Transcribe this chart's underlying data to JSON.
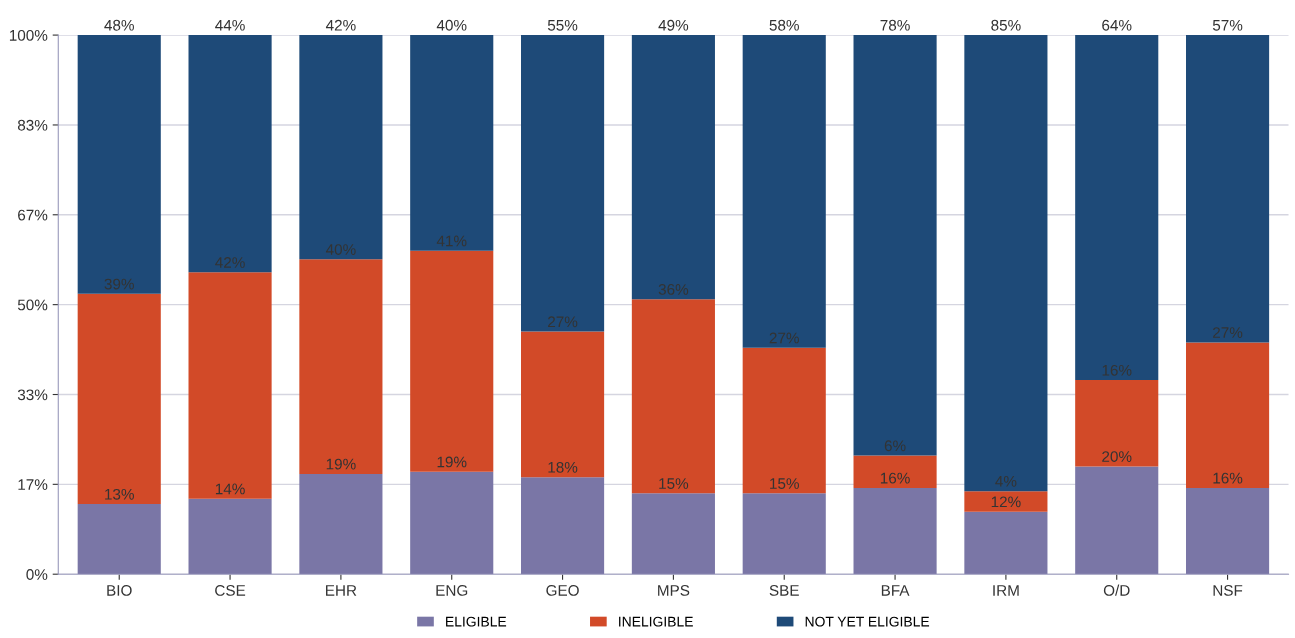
{
  "chart_data": {
    "type": "bar",
    "stacked": true,
    "categories": [
      "BIO",
      "CSE",
      "EHR",
      "ENG",
      "GEO",
      "MPS",
      "SBE",
      "BFA",
      "IRM",
      "O/D",
      "NSF"
    ],
    "series": [
      {
        "name": "ELIGIBLE",
        "color": "#7a76a6",
        "values": [
          13,
          14,
          18.6,
          19,
          18,
          15,
          15,
          16,
          11.6,
          20,
          16
        ],
        "value_labels": [
          "13%",
          "14%",
          "19%",
          "19%",
          "18%",
          "15%",
          "15%",
          "16%",
          "12%",
          "20%",
          "16%"
        ]
      },
      {
        "name": "INELIGIBLE",
        "color": "#d24a28",
        "values": [
          39,
          42,
          39.8,
          41,
          27,
          36,
          27,
          6,
          3.8,
          16,
          27
        ],
        "value_labels": [
          "39%",
          "42%",
          "40%",
          "41%",
          "27%",
          "36%",
          "27%",
          "6%",
          "4%",
          "16%",
          "27%"
        ]
      },
      {
        "name": "NOT YET ELIGIBLE",
        "color": "#1e4a78",
        "values": [
          48,
          44,
          41.6,
          40,
          55,
          49,
          58,
          78,
          84.6,
          64,
          57
        ],
        "value_labels": [
          "48%",
          "44%",
          "42%",
          "40%",
          "55%",
          "49%",
          "58%",
          "78%",
          "85%",
          "64%",
          "57%"
        ]
      }
    ],
    "ylim": [
      0,
      100
    ],
    "yticks": [
      {
        "value": 0,
        "label": "0%"
      },
      {
        "value": 16.67,
        "label": "17%"
      },
      {
        "value": 33.33,
        "label": "33%"
      },
      {
        "value": 50,
        "label": "50%"
      },
      {
        "value": 66.67,
        "label": "67%"
      },
      {
        "value": 83.33,
        "label": "83%"
      },
      {
        "value": 100,
        "label": "100%"
      }
    ],
    "grid": "y",
    "legend": "bottom"
  }
}
